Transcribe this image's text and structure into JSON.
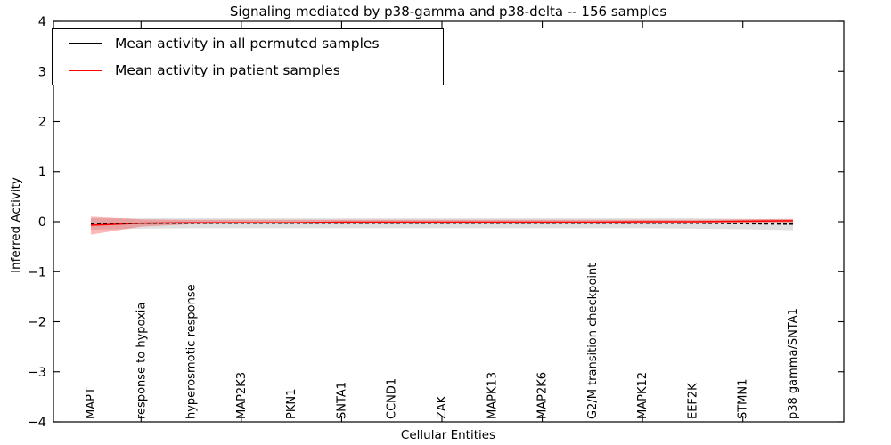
{
  "chart_data": {
    "type": "line",
    "title": "Signaling mediated by p38-gamma and p38-delta -- 156 samples",
    "xlabel": "Cellular Entities",
    "ylabel": "Inferred Activity",
    "ylim": [
      -4,
      4
    ],
    "yticks": [
      -4,
      -3,
      -2,
      -1,
      0,
      1,
      2,
      3,
      4
    ],
    "x_major_tick_indices": [
      1,
      3,
      5,
      7,
      9,
      11,
      13
    ],
    "grid": false,
    "legend_position": "upper left",
    "background_color": "#ffffff",
    "categories": [
      "MAPT",
      "response to hypoxia",
      "hyperosmotic response",
      "MAP2K3",
      "PKN1",
      "SNTA1",
      "CCND1",
      "ZAK",
      "MAPK13",
      "MAP2K6",
      "G2/M transition checkpoint",
      "MAPK12",
      "EEF2K",
      "STMN1",
      "p38 gamma/SNTA1"
    ],
    "series": [
      {
        "name": "Mean activity in all permuted samples",
        "color": "#000000",
        "style": "dashed",
        "values": [
          -0.04,
          -0.03,
          -0.03,
          -0.03,
          -0.03,
          -0.03,
          -0.03,
          -0.03,
          -0.03,
          -0.03,
          -0.03,
          -0.03,
          -0.03,
          -0.04,
          -0.05
        ]
      },
      {
        "name": "Mean activity in patient samples",
        "color": "#ff0000",
        "style": "solid",
        "values": [
          -0.07,
          -0.03,
          -0.02,
          -0.02,
          -0.02,
          -0.01,
          -0.01,
          -0.01,
          -0.01,
          -0.01,
          -0.01,
          0.0,
          0.0,
          0.01,
          0.02
        ]
      }
    ],
    "bands": [
      {
        "name": "permuted-samples-confidence-band",
        "color": "#000000",
        "opacity": 0.12,
        "upper": [
          0.07,
          0.07,
          0.07,
          0.07,
          0.07,
          0.07,
          0.07,
          0.07,
          0.07,
          0.07,
          0.07,
          0.07,
          0.07,
          0.06,
          0.05
        ],
        "lower": [
          -0.16,
          -0.14,
          -0.13,
          -0.13,
          -0.13,
          -0.13,
          -0.13,
          -0.13,
          -0.13,
          -0.13,
          -0.13,
          -0.13,
          -0.14,
          -0.15,
          -0.17
        ]
      },
      {
        "name": "patient-samples-confidence-band",
        "color": "#ff0000",
        "opacity": 0.28,
        "upper": [
          0.1,
          0.05,
          0.04,
          0.04,
          0.04,
          0.04,
          0.04,
          0.04,
          0.04,
          0.04,
          0.04,
          0.04,
          0.04,
          0.05,
          0.06
        ],
        "lower": [
          -0.26,
          -0.1,
          -0.05,
          -0.04,
          -0.04,
          -0.04,
          -0.04,
          -0.04,
          -0.04,
          -0.04,
          -0.04,
          -0.04,
          -0.03,
          -0.03,
          -0.02
        ]
      }
    ]
  }
}
